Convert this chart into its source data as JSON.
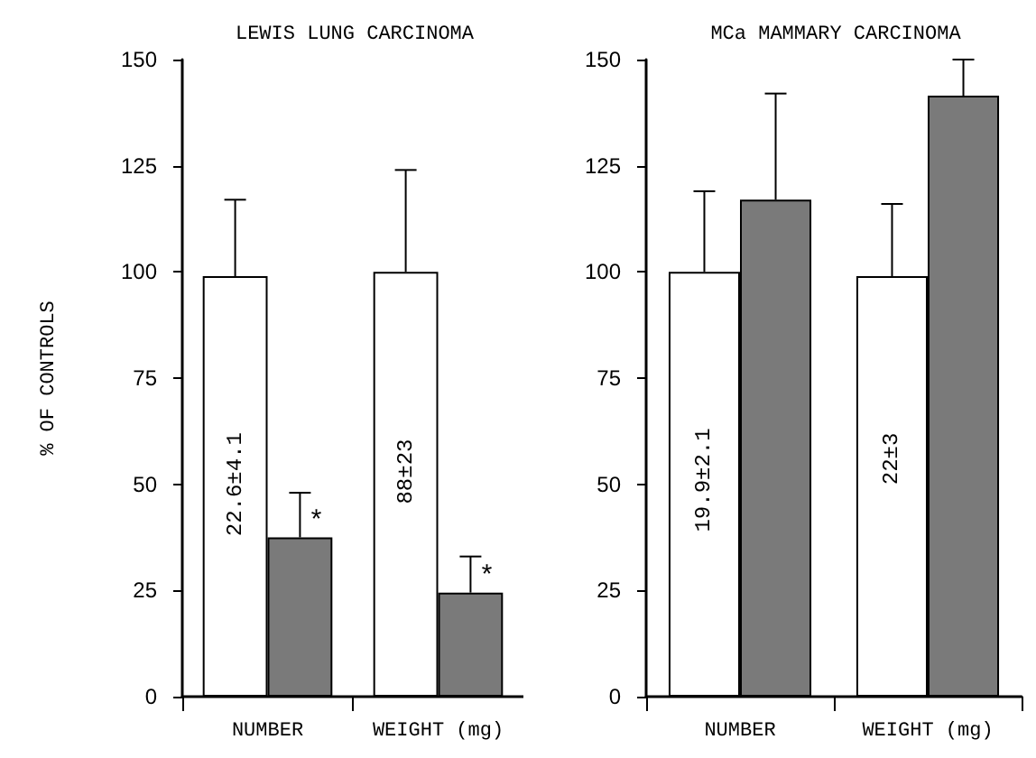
{
  "chart_data": [
    {
      "type": "bar",
      "title": "LEWIS LUNG CARCINOMA",
      "ylabel": "% OF CONTROLS",
      "categories": [
        "NUMBER",
        "WEIGHT (mg)"
      ],
      "series": [
        {
          "color": "#ffffff",
          "values": [
            99,
            100
          ],
          "errors": [
            [
              99,
              117
            ],
            [
              100,
              124
            ]
          ]
        },
        {
          "color": "#7a7a7a",
          "values": [
            37.5,
            24.5
          ],
          "errors": [
            [
              37.5,
              48
            ],
            [
              24.5,
              33
            ]
          ]
        }
      ],
      "ylim": [
        0,
        150
      ],
      "yticks": [
        0,
        25,
        50,
        75,
        100,
        125,
        150
      ],
      "grid": false,
      "annotations": [
        {
          "text": "22.6±4.1",
          "x": "NUMBER",
          "y": 50
        },
        {
          "text": "*",
          "x": "NUMBER",
          "y": 41
        },
        {
          "text": "88±23",
          "x": "WEIGHT (mg)",
          "y": 53
        },
        {
          "text": "*",
          "x": "WEIGHT (mg)",
          "y": 28
        }
      ]
    },
    {
      "type": "bar",
      "title": "MCa MAMMARY CARCINOMA",
      "categories": [
        "NUMBER",
        "WEIGHT (mg)"
      ],
      "series": [
        {
          "color": "#ffffff",
          "values": [
            100,
            99
          ],
          "errors": [
            [
              100,
              119
            ],
            [
              99,
              116
            ]
          ]
        },
        {
          "color": "#7a7a7a",
          "values": [
            117,
            141.5
          ],
          "errors": [
            [
              117,
              142
            ],
            [
              141.5,
              150
            ]
          ]
        }
      ],
      "ylim": [
        0,
        150
      ],
      "yticks": [
        0,
        25,
        50,
        75,
        100,
        125,
        150
      ],
      "grid": false,
      "annotations": [
        {
          "text": "19.9±2.1",
          "x": "NUMBER",
          "y": 51
        },
        {
          "text": "22±3",
          "x": "WEIGHT (mg)",
          "y": 56
        }
      ]
    }
  ]
}
